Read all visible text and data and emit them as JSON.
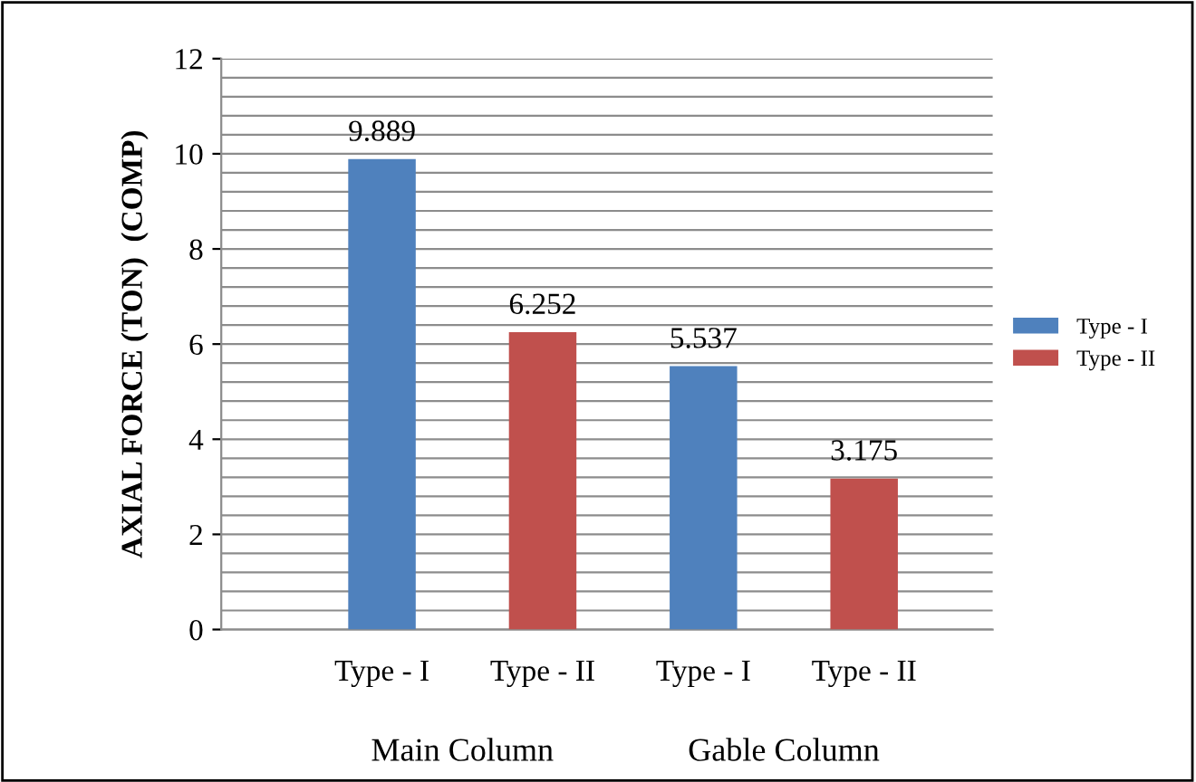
{
  "chart_data": {
    "type": "bar",
    "ylabel": "AXIAL FORCE (TON)  (COMP)",
    "categories": [
      "Type - I",
      "Type - II",
      "Type - I",
      "Type - II"
    ],
    "series": [
      {
        "name": "Type - I",
        "color": "#4f81bd",
        "values": [
          9.889,
          null,
          5.537,
          null
        ]
      },
      {
        "name": "Type - II",
        "color": "#c0504d",
        "values": [
          null,
          6.252,
          null,
          3.175
        ]
      }
    ],
    "annotations": [
      "Main Column",
      "Gable Column"
    ],
    "ylim": [
      0,
      12
    ],
    "yticks": [
      0,
      2,
      4,
      6,
      8,
      10,
      12
    ],
    "grid": "y",
    "legend": "right",
    "data_labels": true
  }
}
